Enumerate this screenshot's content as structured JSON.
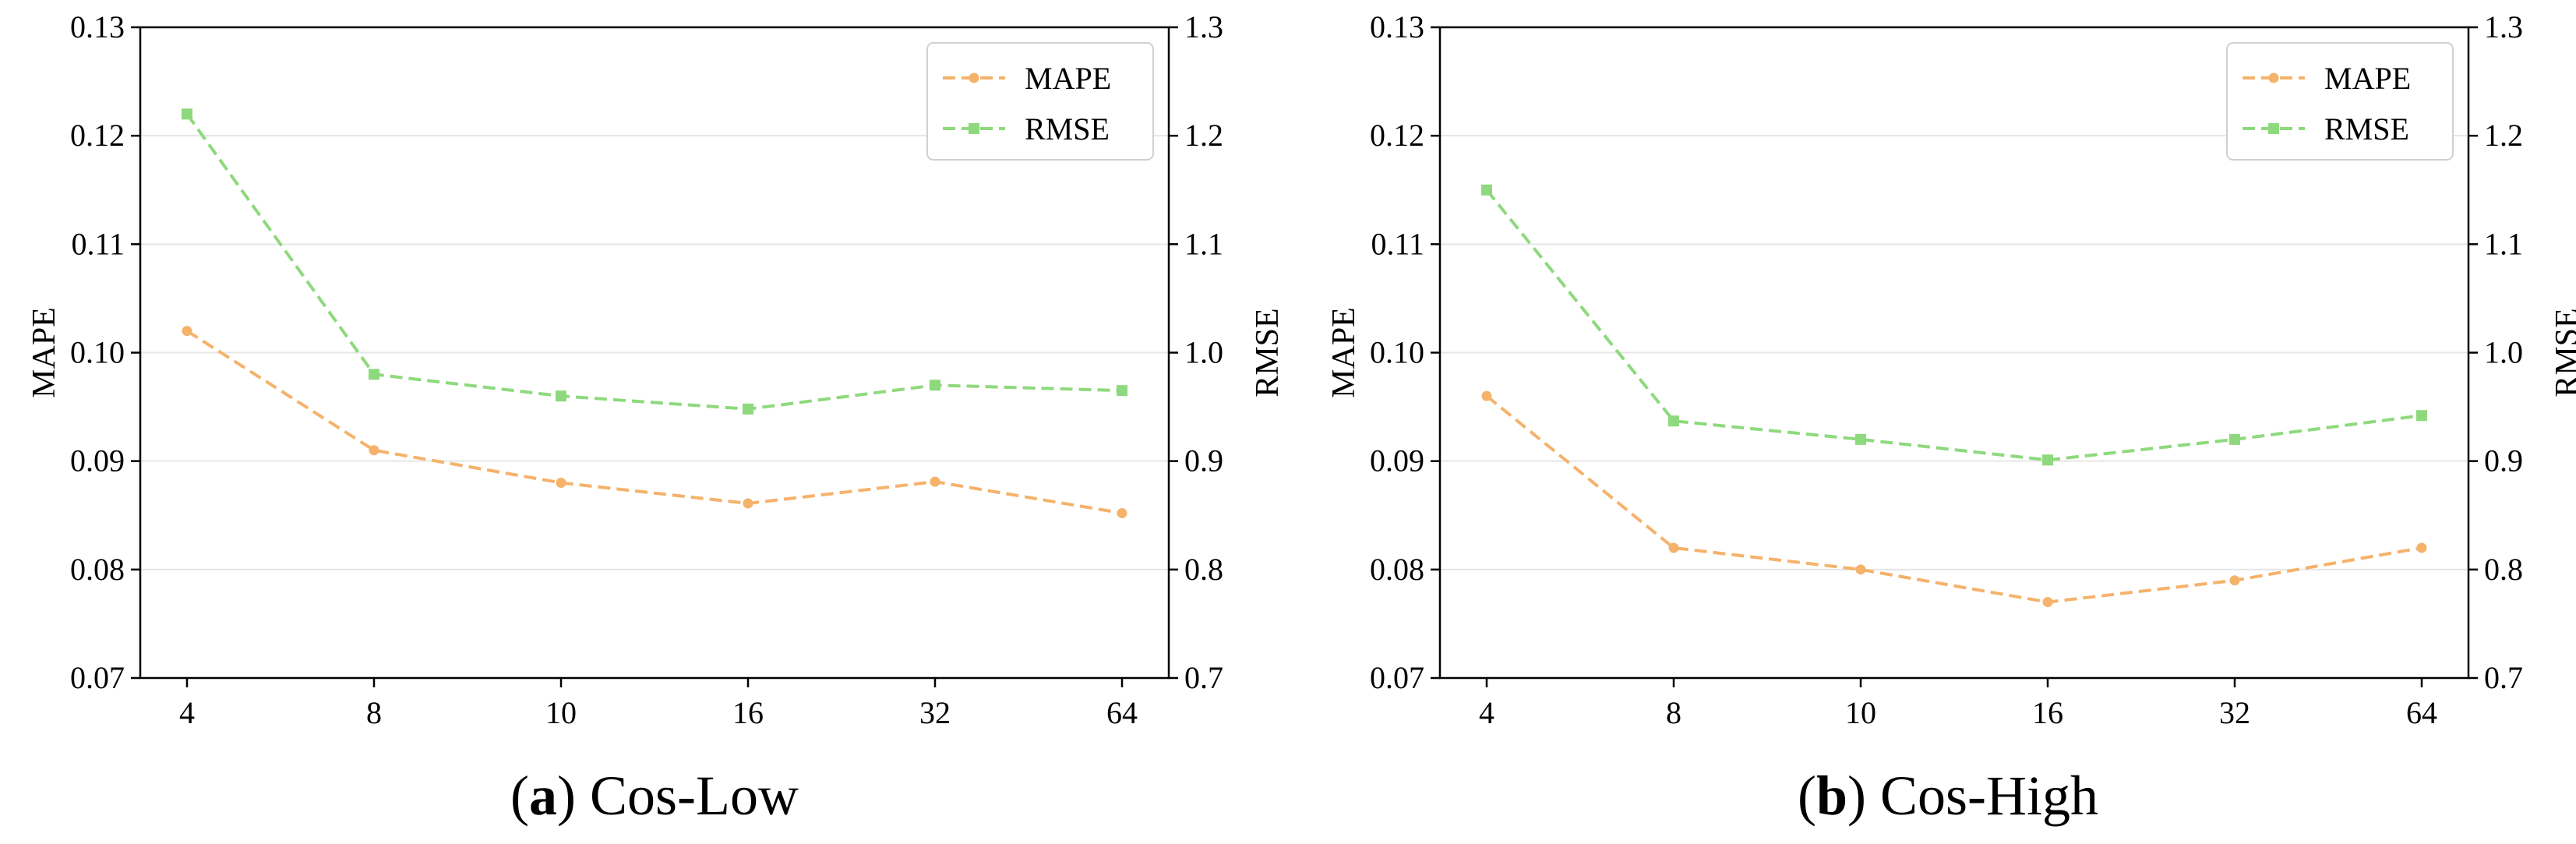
{
  "chart_data": [
    {
      "type": "line",
      "caption_letter": "a",
      "caption_title": "Cos-Low",
      "categories": [
        "4",
        "8",
        "10",
        "16",
        "32",
        "64"
      ],
      "x_tick_labels": [
        "4",
        "8",
        "10",
        "16",
        "32",
        "64"
      ],
      "ylabel": "MAPE",
      "y2label": "RMSE",
      "ylim": [
        0.07,
        0.13
      ],
      "y2lim": [
        0.7,
        1.3
      ],
      "y_ticks": [
        "0.07",
        "0.08",
        "0.09",
        "0.10",
        "0.11",
        "0.12",
        "0.13"
      ],
      "y2_ticks": [
        "0.7",
        "0.8",
        "0.9",
        "1.0",
        "1.1",
        "1.2",
        "1.3"
      ],
      "grid": "horizontal",
      "legend_position": "top-right",
      "series": [
        {
          "name": "MAPE",
          "axis": "left",
          "marker": "circle",
          "color": "#f5b26b",
          "values": [
            0.102,
            0.091,
            0.088,
            0.0861,
            0.0881,
            0.0852
          ]
        },
        {
          "name": "RMSE",
          "axis": "right",
          "marker": "square",
          "color": "#8ed97d",
          "values": [
            1.22,
            0.98,
            0.96,
            0.948,
            0.97,
            0.965
          ]
        }
      ]
    },
    {
      "type": "line",
      "caption_letter": "b",
      "caption_title": "Cos-High",
      "categories": [
        "4",
        "8",
        "10",
        "16",
        "32",
        "64"
      ],
      "x_tick_labels": [
        "4",
        "8",
        "10",
        "16",
        "32",
        "64"
      ],
      "ylabel": "MAPE",
      "y2label": "RMSE",
      "ylim": [
        0.07,
        0.13
      ],
      "y2lim": [
        0.7,
        1.3
      ],
      "y_ticks": [
        "0.07",
        "0.08",
        "0.09",
        "0.10",
        "0.11",
        "0.12",
        "0.13"
      ],
      "y2_ticks": [
        "0.7",
        "0.8",
        "0.9",
        "1.0",
        "1.1",
        "1.2",
        "1.3"
      ],
      "grid": "horizontal",
      "legend_position": "top-right",
      "series": [
        {
          "name": "MAPE",
          "axis": "left",
          "marker": "circle",
          "color": "#f5b26b",
          "values": [
            0.096,
            0.082,
            0.08,
            0.077,
            0.079,
            0.082
          ]
        },
        {
          "name": "RMSE",
          "axis": "right",
          "marker": "square",
          "color": "#8ed97d",
          "values": [
            1.15,
            0.937,
            0.92,
            0.901,
            0.92,
            0.942
          ]
        }
      ]
    }
  ]
}
